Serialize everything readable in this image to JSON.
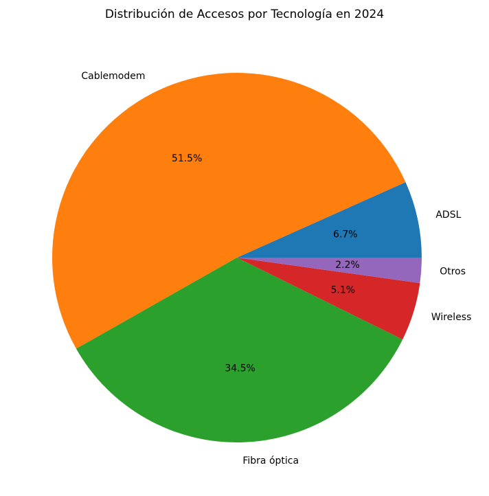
{
  "chart_data": {
    "type": "pie",
    "title": "Distribución de Accesos por Tecnología en 2024",
    "slices": [
      {
        "label": "ADSL",
        "value": 6.7,
        "pct_label": "6.7%",
        "color": "#1f77b4"
      },
      {
        "label": "Cablemodem",
        "value": 51.5,
        "pct_label": "51.5%",
        "color": "#ff7f0e"
      },
      {
        "label": "Fibra óptica",
        "value": 34.5,
        "pct_label": "34.5%",
        "color": "#2ca02c"
      },
      {
        "label": "Wireless",
        "value": 5.1,
        "pct_label": "5.1%",
        "color": "#d62728"
      },
      {
        "label": "Otros",
        "value": 2.2,
        "pct_label": "2.2%",
        "color": "#9467bd"
      }
    ]
  }
}
